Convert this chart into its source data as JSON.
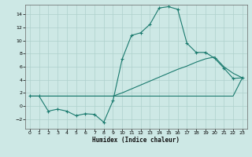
{
  "title": "",
  "xlabel": "Humidex (Indice chaleur)",
  "xlim": [
    -0.5,
    23.5
  ],
  "ylim": [
    -3.5,
    15.5
  ],
  "yticks": [
    -2,
    0,
    2,
    4,
    6,
    8,
    10,
    12,
    14
  ],
  "xticks": [
    0,
    1,
    2,
    3,
    4,
    5,
    6,
    7,
    8,
    9,
    10,
    11,
    12,
    13,
    14,
    15,
    16,
    17,
    18,
    19,
    20,
    21,
    22,
    23
  ],
  "bg_color": "#cde8e5",
  "line_color": "#1a7a6e",
  "grid_color": "#aed0cc",
  "line1_x": [
    0,
    22,
    23
  ],
  "line1_y": [
    1.5,
    1.5,
    4.3
  ],
  "line2_x": [
    0,
    1,
    9,
    10,
    11,
    12,
    13,
    14,
    15,
    16,
    17,
    18,
    19,
    20,
    21,
    22,
    23
  ],
  "line2_y": [
    1.5,
    1.5,
    1.5,
    2.0,
    2.6,
    3.2,
    3.8,
    4.4,
    5.0,
    5.6,
    6.1,
    6.7,
    7.2,
    7.5,
    6.0,
    5.0,
    4.3
  ],
  "line3_x": [
    0,
    1,
    2,
    3,
    4,
    5,
    6,
    7,
    8,
    9,
    10,
    11,
    12,
    13,
    14,
    15,
    16,
    17,
    18,
    19,
    20,
    21,
    22,
    23
  ],
  "line3_y": [
    1.5,
    1.5,
    -0.8,
    -0.5,
    -0.8,
    -1.5,
    -1.2,
    -1.3,
    -2.5,
    0.8,
    7.2,
    10.8,
    11.2,
    12.5,
    15.0,
    15.2,
    14.8,
    9.6,
    8.2,
    8.2,
    7.3,
    5.8,
    4.2,
    4.3
  ],
  "figsize": [
    3.2,
    2.0
  ],
  "dpi": 100
}
